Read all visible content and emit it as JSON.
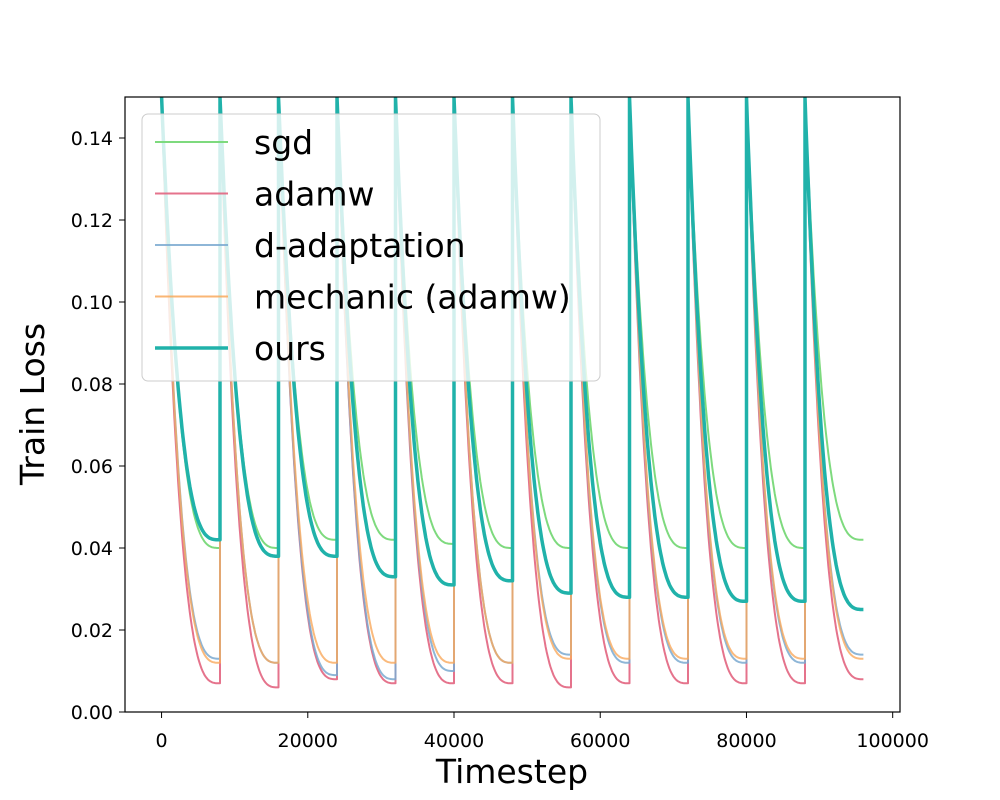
{
  "chart_data": {
    "type": "line",
    "title": "",
    "xlabel": "Timestep",
    "ylabel": "Train Loss",
    "xlim": [
      -5000,
      101000
    ],
    "ylim": [
      0.0,
      0.15
    ],
    "xticks": [
      0,
      20000,
      40000,
      60000,
      80000,
      100000
    ],
    "xtick_labels": [
      "0",
      "20000",
      "40000",
      "60000",
      "80000",
      "100000"
    ],
    "yticks": [
      0.0,
      0.02,
      0.04,
      0.06,
      0.08,
      0.1,
      0.12,
      0.14
    ],
    "ytick_labels": [
      "0.00",
      "0.02",
      "0.04",
      "0.06",
      "0.08",
      "0.10",
      "0.12",
      "0.14"
    ],
    "grid": false,
    "legend_position": "top-left",
    "restart_period": 8000,
    "x_end": 96000,
    "series": [
      {
        "name": "sgd",
        "color": "#77d877",
        "width": 2,
        "opacity": 0.95,
        "cycle_end_values": [
          0.04,
          0.04,
          0.042,
          0.042,
          0.041,
          0.04,
          0.04,
          0.04,
          0.04,
          0.04,
          0.04,
          0.042
        ],
        "cycle_start_values": [
          0.15,
          0.15,
          0.15,
          0.15,
          0.15,
          0.15,
          0.15,
          0.15,
          0.15,
          0.15,
          0.15,
          0.15
        ]
      },
      {
        "name": "adamw",
        "color": "#e2647f",
        "width": 2,
        "opacity": 0.9,
        "cycle_end_values": [
          0.007,
          0.006,
          0.008,
          0.007,
          0.007,
          0.007,
          0.006,
          0.007,
          0.007,
          0.007,
          0.007,
          0.008
        ],
        "cycle_start_values": [
          0.15,
          0.15,
          0.15,
          0.15,
          0.15,
          0.15,
          0.15,
          0.15,
          0.15,
          0.15,
          0.15,
          0.15
        ]
      },
      {
        "name": "d-adaptation",
        "color": "#7aa9d0",
        "width": 2,
        "opacity": 0.85,
        "cycle_end_values": [
          0.013,
          0.012,
          0.009,
          0.008,
          0.01,
          0.012,
          0.014,
          0.012,
          0.012,
          0.012,
          0.012,
          0.014
        ],
        "cycle_start_values": [
          0.15,
          0.15,
          0.15,
          0.15,
          0.15,
          0.15,
          0.15,
          0.15,
          0.15,
          0.15,
          0.15,
          0.15
        ]
      },
      {
        "name": "mechanic (adamw)",
        "color": "#f9a95c",
        "width": 2,
        "opacity": 0.8,
        "cycle_end_values": [
          0.012,
          0.012,
          0.012,
          0.012,
          0.012,
          0.012,
          0.013,
          0.013,
          0.013,
          0.013,
          0.013,
          0.013
        ],
        "cycle_start_values": [
          0.15,
          0.15,
          0.15,
          0.15,
          0.15,
          0.15,
          0.15,
          0.15,
          0.15,
          0.15,
          0.15,
          0.15
        ]
      },
      {
        "name": "ours",
        "color": "#20b2aa",
        "width": 3.5,
        "opacity": 1.0,
        "cycle_end_values": [
          0.042,
          0.038,
          0.038,
          0.033,
          0.031,
          0.032,
          0.029,
          0.028,
          0.028,
          0.027,
          0.027,
          0.025
        ],
        "cycle_start_values": [
          0.15,
          0.15,
          0.15,
          0.15,
          0.15,
          0.15,
          0.15,
          0.15,
          0.15,
          0.15,
          0.15,
          0.15
        ]
      }
    ]
  }
}
